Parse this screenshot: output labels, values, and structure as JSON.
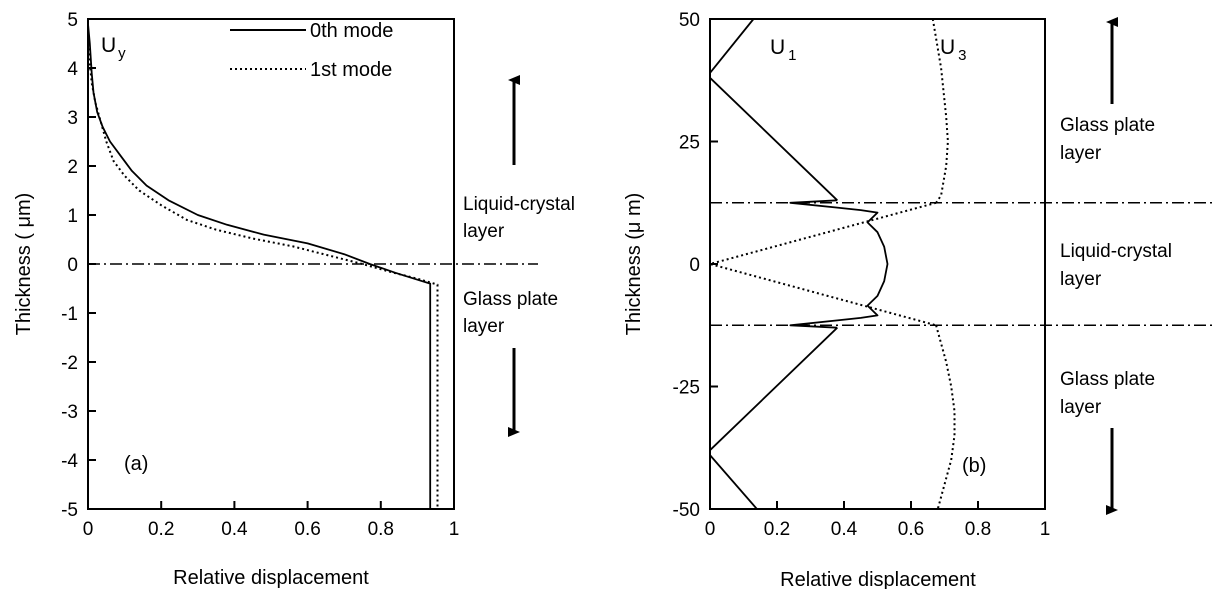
{
  "chart_data": [
    {
      "id": "a",
      "type": "line",
      "panel_label": "(a)",
      "quantity_label": "U",
      "quantity_subscript": "y",
      "xlabel": "Relative displacement",
      "ylabel": "Thickness ( μm)",
      "xlim": [
        0,
        1
      ],
      "ylim": [
        -5,
        5
      ],
      "xticks": [
        "0",
        "0.2",
        "0.4",
        "0.6",
        "0.8",
        "1"
      ],
      "yticks": [
        "5",
        "4",
        "3",
        "2",
        "1",
        "0",
        "-1",
        "-2",
        "-3",
        "-4",
        "-5"
      ],
      "grid": false,
      "legend_position": "top-right",
      "series": [
        {
          "name": "0th mode",
          "style": "solid",
          "points": [
            [
              0.0,
              4.9
            ],
            [
              0.005,
              4.5
            ],
            [
              0.01,
              3.9
            ],
            [
              0.015,
              3.5
            ],
            [
              0.025,
              3.1
            ],
            [
              0.04,
              2.8
            ],
            [
              0.06,
              2.5
            ],
            [
              0.09,
              2.2
            ],
            [
              0.12,
              1.9
            ],
            [
              0.16,
              1.6
            ],
            [
              0.22,
              1.3
            ],
            [
              0.3,
              1.0
            ],
            [
              0.38,
              0.8
            ],
            [
              0.48,
              0.6
            ],
            [
              0.6,
              0.42
            ],
            [
              0.7,
              0.2
            ],
            [
              0.77,
              0.0
            ],
            [
              0.84,
              -0.18
            ],
            [
              0.9,
              -0.32
            ],
            [
              0.935,
              -0.4
            ],
            [
              0.935,
              -5.0
            ]
          ]
        },
        {
          "name": "1st mode",
          "style": "dotted",
          "points": [
            [
              0.0,
              4.5
            ],
            [
              0.005,
              4.1
            ],
            [
              0.01,
              3.7
            ],
            [
              0.02,
              3.3
            ],
            [
              0.035,
              2.9
            ],
            [
              0.05,
              2.5
            ],
            [
              0.07,
              2.1
            ],
            [
              0.1,
              1.8
            ],
            [
              0.14,
              1.5
            ],
            [
              0.2,
              1.2
            ],
            [
              0.27,
              0.9
            ],
            [
              0.35,
              0.7
            ],
            [
              0.45,
              0.52
            ],
            [
              0.56,
              0.36
            ],
            [
              0.66,
              0.17
            ],
            [
              0.75,
              0.0
            ],
            [
              0.83,
              -0.17
            ],
            [
              0.9,
              -0.3
            ],
            [
              0.955,
              -0.42
            ],
            [
              0.955,
              -5.0
            ]
          ]
        }
      ],
      "reference_lines": [
        {
          "y": 0,
          "style": "dash-dot"
        }
      ],
      "annotations": [
        {
          "text_lines": [
            "Liquid-crystal",
            "layer"
          ]
        },
        {
          "text_lines": [
            "Glass plate",
            "layer"
          ]
        }
      ]
    },
    {
      "id": "b",
      "type": "line",
      "panel_label": "(b)",
      "xlabel": "Relative displacement",
      "ylabel": "Thickness (μ m)",
      "xlim": [
        0,
        1
      ],
      "ylim": [
        -50,
        50
      ],
      "xticks": [
        "0",
        "0.2",
        "0.4",
        "0.6",
        "0.8",
        "1"
      ],
      "yticks": [
        "50",
        "25",
        "0",
        "-25",
        "-50"
      ],
      "grid": false,
      "series": [
        {
          "label": "U",
          "label_subscript": "1",
          "style": "solid",
          "segments": [
            [
              [
                0.0,
                39
              ],
              [
                0.13,
                50
              ]
            ],
            [
              [
                0.0,
                38
              ],
              [
                0.38,
                13
              ]
            ],
            [
              [
                0.38,
                13
              ],
              [
                0.24,
                12.5
              ],
              [
                0.38,
                11.5
              ],
              [
                0.45,
                11.0
              ],
              [
                0.5,
                10.5
              ],
              [
                0.47,
                8.5
              ],
              [
                0.5,
                6.5
              ],
              [
                0.52,
                3.5
              ],
              [
                0.53,
                0.0
              ],
              [
                0.52,
                -3.5
              ],
              [
                0.5,
                -6.5
              ],
              [
                0.47,
                -8.5
              ],
              [
                0.5,
                -10.5
              ],
              [
                0.45,
                -11.0
              ],
              [
                0.38,
                -11.5
              ],
              [
                0.24,
                -12.5
              ],
              [
                0.38,
                -13
              ]
            ],
            [
              [
                0.38,
                -13
              ],
              [
                0.0,
                -38
              ]
            ],
            [
              [
                0.0,
                -39
              ],
              [
                0.14,
                -50
              ]
            ]
          ]
        },
        {
          "label": "U",
          "label_subscript": "3",
          "style": "dotted",
          "segments": [
            [
              [
                0.665,
                50
              ],
              [
                0.69,
                40
              ],
              [
                0.705,
                30
              ],
              [
                0.71,
                25
              ],
              [
                0.705,
                20
              ],
              [
                0.69,
                14
              ],
              [
                0.675,
                12.5
              ]
            ],
            [
              [
                0.675,
                12.5
              ],
              [
                0.0,
                0.0
              ],
              [
                0.675,
                -12.5
              ]
            ],
            [
              [
                0.675,
                -12.5
              ],
              [
                0.705,
                -20
              ],
              [
                0.72,
                -25
              ],
              [
                0.73,
                -30
              ],
              [
                0.73,
                -35
              ],
              [
                0.72,
                -40
              ],
              [
                0.7,
                -45
              ],
              [
                0.68,
                -50
              ]
            ]
          ]
        }
      ],
      "reference_lines": [
        {
          "y": 12.5,
          "style": "dash-dot"
        },
        {
          "y": -12.5,
          "style": "dash-dot"
        }
      ],
      "annotations": [
        {
          "text_lines": [
            "Glass plate",
            "layer"
          ]
        },
        {
          "text_lines": [
            "Liquid-crystal",
            "layer"
          ]
        },
        {
          "text_lines": [
            "Glass plate",
            "layer"
          ]
        }
      ]
    }
  ]
}
